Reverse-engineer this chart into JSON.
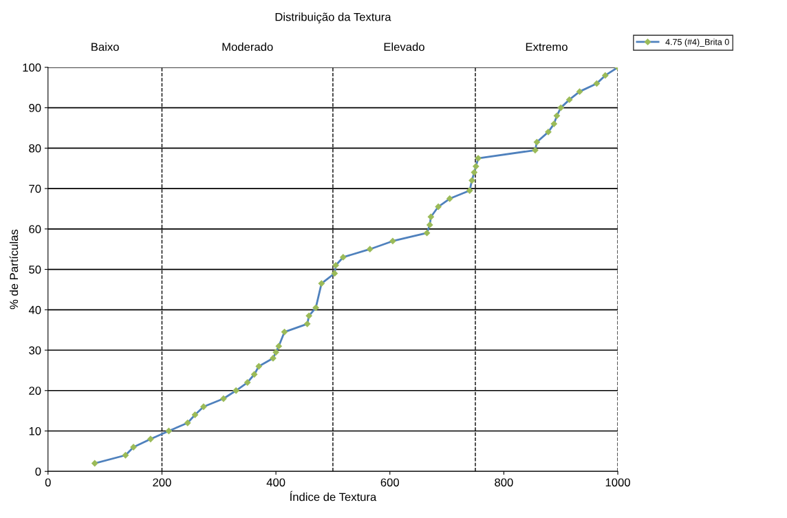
{
  "chart_data": {
    "type": "line",
    "title": "Distribuição da Textura",
    "xlabel": "Índice de Textura",
    "ylabel": "% de Partículas",
    "series": [
      {
        "name": "4.75 (#4)_Brita 0",
        "color": "#4f81bd",
        "x": [
          82,
          136,
          150,
          180,
          212,
          245,
          258,
          273,
          308,
          330,
          350,
          362,
          370,
          395,
          400,
          405,
          415,
          455,
          458,
          470,
          480,
          503,
          505,
          518,
          565,
          605,
          665,
          670,
          672,
          685,
          705,
          740,
          744,
          748,
          751,
          755,
          855,
          858,
          878,
          888,
          893,
          900,
          915,
          933,
          963,
          978,
          1000
        ],
        "values": [
          2,
          4,
          6,
          8,
          10,
          12,
          14,
          16,
          18,
          20,
          22,
          24,
          26,
          28,
          29.5,
          31,
          34.5,
          36.5,
          38.5,
          40.5,
          46.5,
          49,
          51,
          53,
          55,
          57,
          59,
          61,
          63,
          65.5,
          67.5,
          69.5,
          72,
          74,
          75.5,
          77.5,
          79.5,
          81.5,
          84,
          86,
          88,
          90,
          92,
          94,
          96,
          98,
          100
        ]
      }
    ],
    "xlim": [
      0,
      1000
    ],
    "xticks": [
      0,
      200,
      400,
      600,
      800,
      1000
    ],
    "ylim": [
      0,
      100
    ],
    "yticks": [
      0,
      10,
      20,
      30,
      40,
      50,
      60,
      70,
      80,
      90,
      100
    ],
    "ref_lines": [
      {
        "axis": "x",
        "value": 200,
        "line_style": "dashed"
      },
      {
        "axis": "x",
        "value": 500,
        "line_style": "dashed"
      },
      {
        "axis": "x",
        "value": 750,
        "line_style": "dashed"
      },
      {
        "axis": "x",
        "value": 1000,
        "line_style": "dashed"
      }
    ],
    "annotations": [
      "Baixo",
      "Moderado",
      "Elevado",
      "Extremo"
    ],
    "grid": "y",
    "legend": "top right",
    "marker": "diamond",
    "line_style": "solid"
  }
}
